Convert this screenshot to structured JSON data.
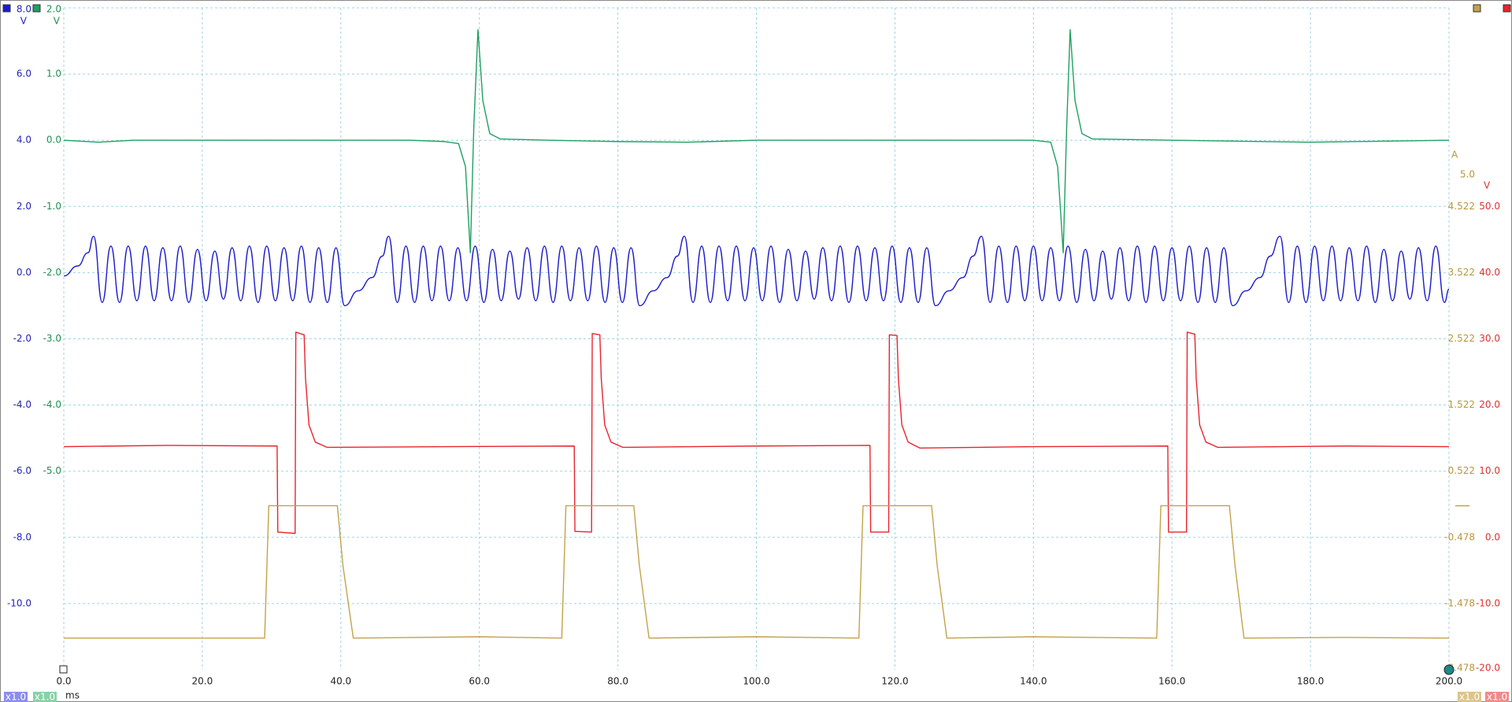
{
  "chart_data": {
    "type": "line",
    "x_unit": "ms",
    "grid": true,
    "xlim": [
      0,
      200
    ],
    "xticks": [
      {
        "value": 0,
        "label": "0.0"
      },
      {
        "value": 20,
        "label": "20.0"
      },
      {
        "value": 40,
        "label": "40.0"
      },
      {
        "value": 60,
        "label": "60.0"
      },
      {
        "value": 80,
        "label": "80.0"
      },
      {
        "value": 100,
        "label": "100.0"
      },
      {
        "value": 120,
        "label": "120.0"
      },
      {
        "value": 140,
        "label": "140.0"
      },
      {
        "value": 160,
        "label": "160.0"
      },
      {
        "value": 180,
        "label": "180.0"
      },
      {
        "value": 200,
        "label": "200.0"
      }
    ],
    "series": [
      {
        "color": "#1c1ccc",
        "unit": "V",
        "badge": "x1.0",
        "smooth": true,
        "ylim": [
          -12,
          8
        ],
        "yticks": [
          {
            "value": 8,
            "label": "8.0"
          },
          {
            "value": 6,
            "label": "6.0"
          },
          {
            "value": 4,
            "label": "4.0"
          },
          {
            "value": 2,
            "label": "2.0"
          },
          {
            "value": 0,
            "label": "0.0"
          },
          {
            "value": -2,
            "label": "-2.0"
          },
          {
            "value": -4,
            "label": "-4.0"
          },
          {
            "value": -6,
            "label": "-6.0"
          },
          {
            "value": -8,
            "label": "-8.0"
          },
          {
            "value": -10,
            "label": "-10.0"
          }
        ],
        "x": [
          0,
          2,
          3.5,
          4.3,
          5.55,
          6.8,
          8.05,
          9.3,
          10.55,
          11.8,
          13.05,
          14.3,
          15.55,
          16.8,
          18.05,
          19.3,
          20.55,
          21.8,
          23.05,
          24.3,
          25.55,
          26.8,
          28.05,
          29.3,
          30.55,
          31.8,
          33.05,
          34.3,
          35.55,
          36.8,
          38.05,
          39.3,
          40.55,
          42.5,
          44.5,
          46.0,
          46.9,
          48.15,
          49.4,
          50.65,
          51.9,
          53.15,
          54.4,
          55.65,
          56.9,
          58.15,
          59.4,
          60.65,
          61.9,
          63.15,
          64.4,
          65.65,
          66.9,
          68.15,
          69.4,
          70.65,
          71.9,
          73.15,
          74.4,
          75.65,
          76.9,
          78.15,
          79.4,
          80.65,
          81.9,
          83.15,
          85.1,
          87.1,
          88.6,
          89.6,
          90.85,
          92.1,
          93.35,
          94.6,
          95.85,
          97.1,
          98.35,
          99.6,
          100.85,
          102.1,
          103.35,
          104.6,
          105.85,
          107.1,
          108.35,
          109.6,
          110.85,
          112.1,
          113.35,
          114.6,
          115.85,
          117.1,
          118.35,
          119.6,
          120.85,
          122.1,
          123.35,
          124.6,
          125.85,
          127.8,
          129.8,
          131.3,
          132.5,
          133.75,
          135,
          136.25,
          137.5,
          138.75,
          140,
          141.25,
          142.5,
          143.75,
          145,
          146.25,
          147.5,
          148.75,
          150,
          151.25,
          152.5,
          153.75,
          155,
          156.25,
          157.5,
          158.75,
          160,
          161.25,
          162.5,
          163.75,
          165,
          166.25,
          167.5,
          168.75,
          170.7,
          172.7,
          174.2,
          175.6,
          176.85,
          178.1,
          179.35,
          180.6,
          181.85,
          183.1,
          184.35,
          185.6,
          186.85,
          188.1,
          189.35,
          190.6,
          191.85,
          193.1,
          194.35,
          195.6,
          196.85,
          198.1,
          199.35,
          200
        ],
        "values": [
          -0.1,
          0.2,
          0.6,
          1.1,
          -0.9,
          0.8,
          -0.9,
          0.8,
          -0.85,
          0.8,
          -0.85,
          0.75,
          -0.85,
          0.8,
          -0.9,
          0.7,
          -0.85,
          0.65,
          -0.8,
          0.75,
          -0.85,
          0.8,
          -0.9,
          0.8,
          -0.85,
          0.75,
          -0.85,
          0.8,
          -0.9,
          0.75,
          -0.9,
          0.75,
          -1.0,
          -0.55,
          -0.15,
          0.5,
          1.1,
          -0.9,
          0.8,
          -0.9,
          0.8,
          -0.85,
          0.8,
          -0.85,
          0.75,
          -0.85,
          0.8,
          -0.9,
          0.7,
          -0.85,
          0.65,
          -0.8,
          0.75,
          -0.85,
          0.8,
          -0.9,
          0.8,
          -0.85,
          0.75,
          -0.85,
          0.8,
          -0.9,
          0.75,
          -0.9,
          0.75,
          -1.0,
          -0.55,
          -0.15,
          0.5,
          1.1,
          -0.9,
          0.8,
          -0.9,
          0.8,
          -0.85,
          0.8,
          -0.85,
          0.75,
          -0.85,
          0.8,
          -0.9,
          0.7,
          -0.85,
          0.65,
          -0.8,
          0.75,
          -0.85,
          0.8,
          -0.9,
          0.8,
          -0.85,
          0.75,
          -0.85,
          0.8,
          -0.9,
          0.75,
          -0.9,
          0.75,
          -1.0,
          -0.55,
          -0.15,
          0.5,
          1.1,
          -0.9,
          0.8,
          -0.9,
          0.8,
          -0.85,
          0.8,
          -0.85,
          0.75,
          -0.85,
          0.8,
          -0.9,
          0.7,
          -0.85,
          0.65,
          -0.8,
          0.75,
          -0.85,
          0.8,
          -0.9,
          0.8,
          -0.85,
          0.75,
          -0.85,
          0.8,
          -0.9,
          0.75,
          -0.9,
          0.75,
          -1.0,
          -0.55,
          -0.15,
          0.5,
          1.1,
          -0.9,
          0.8,
          -0.9,
          0.8,
          -0.85,
          0.8,
          -0.85,
          0.75,
          -0.85,
          0.8,
          -0.9,
          0.7,
          -0.85,
          0.65,
          -0.8,
          0.75,
          -0.85,
          0.8,
          -0.9,
          -0.5
        ]
      },
      {
        "color": "#1fa060",
        "unit": "V",
        "badge": "x1.0",
        "ylim": [
          -8,
          2
        ],
        "yticks": [
          {
            "value": 2,
            "label": "2.0"
          },
          {
            "value": 1,
            "label": "1.0"
          },
          {
            "value": 0,
            "label": "0.0"
          },
          {
            "value": -1,
            "label": "-1.0"
          },
          {
            "value": -2,
            "label": "-2.0"
          },
          {
            "value": -3,
            "label": "-3.0"
          },
          {
            "value": -4,
            "label": "-4.0"
          },
          {
            "value": -5,
            "label": "-5.0"
          }
        ],
        "x": [
          0,
          5,
          10,
          20,
          30,
          40,
          50,
          55,
          57,
          58,
          58.7,
          59.2,
          59.8,
          60.5,
          61.5,
          63,
          70,
          80,
          90,
          100,
          110,
          120,
          130,
          140,
          142.5,
          143.5,
          144.3,
          144.8,
          145.3,
          146,
          147,
          148.5,
          160,
          180,
          200
        ],
        "values": [
          0,
          -0.03,
          0,
          0,
          0,
          0,
          0,
          -0.02,
          -0.05,
          -0.4,
          -1.7,
          0.2,
          1.67,
          0.6,
          0.1,
          0.02,
          0,
          -0.02,
          -0.03,
          0,
          0,
          0,
          0,
          0,
          -0.03,
          -0.4,
          -1.7,
          0.2,
          1.67,
          0.6,
          0.1,
          0.02,
          0,
          -0.03,
          0
        ]
      },
      {
        "color": "#e8242c",
        "unit": "V",
        "badge": "x1.0",
        "ylim": [
          -20,
          80
        ],
        "yticks": [
          {
            "value": 50,
            "label": "50.0"
          },
          {
            "value": 40,
            "label": "40.0"
          },
          {
            "value": 30,
            "label": "30.0"
          },
          {
            "value": 20,
            "label": "20.0"
          },
          {
            "value": 10,
            "label": "10.0"
          },
          {
            "value": 0,
            "label": "0.0"
          },
          {
            "value": -10,
            "label": "-10.0"
          },
          {
            "value": -20,
            "label": "-20.0"
          }
        ],
        "x": [
          0,
          15,
          30.8,
          30.9,
          33.4,
          33.5,
          34.7,
          34.9,
          35.4,
          36.3,
          38,
          55,
          73.7,
          73.8,
          76.2,
          76.3,
          77.4,
          77.6,
          78.1,
          79,
          80.7,
          100,
          116.4,
          116.5,
          119.1,
          119.2,
          120.3,
          120.5,
          121,
          121.9,
          123.6,
          140,
          159.4,
          159.5,
          162.1,
          162.2,
          163.3,
          163.5,
          164,
          164.9,
          166.6,
          185,
          200
        ],
        "values": [
          13.7,
          13.9,
          13.8,
          0.8,
          0.6,
          31.0,
          30.6,
          24,
          17,
          14.4,
          13.6,
          13.7,
          13.8,
          0.9,
          0.8,
          30.8,
          30.6,
          24,
          17,
          14.4,
          13.6,
          13.8,
          13.9,
          0.8,
          0.8,
          30.6,
          30.5,
          24,
          17,
          14.4,
          13.5,
          13.7,
          13.8,
          0.8,
          0.8,
          31.0,
          30.7,
          24,
          17,
          14.4,
          13.6,
          13.8,
          13.7
        ]
      },
      {
        "color": "#c4a24a",
        "unit": "A",
        "badge": "x1.0",
        "ylim": [
          -2.478,
          7.522
        ],
        "yticks": [
          {
            "value": 5,
            "label": "5.0"
          },
          4.522,
          3.522,
          2.522,
          1.522,
          0.522,
          -0.478,
          -1.478,
          -2.478
        ],
        "x": [
          0,
          29.0,
          29.6,
          39.5,
          40.3,
          41.8,
          60,
          71.9,
          72.5,
          82.3,
          83.1,
          84.5,
          100,
          114.8,
          115.4,
          125.3,
          126.1,
          127.5,
          140,
          157.8,
          158.4,
          168.3,
          169.1,
          170.4,
          185,
          200
        ],
        "values": [
          -2.0,
          -2.0,
          0.0,
          0.0,
          -0.9,
          -2.0,
          -1.98,
          -2.0,
          0.0,
          0.0,
          -0.9,
          -2.0,
          -1.98,
          -2.0,
          0.0,
          0.0,
          -0.9,
          -2.0,
          -1.98,
          -2.0,
          0.0,
          0.0,
          -0.9,
          -2.0,
          -1.99,
          -2.0
        ]
      }
    ]
  }
}
